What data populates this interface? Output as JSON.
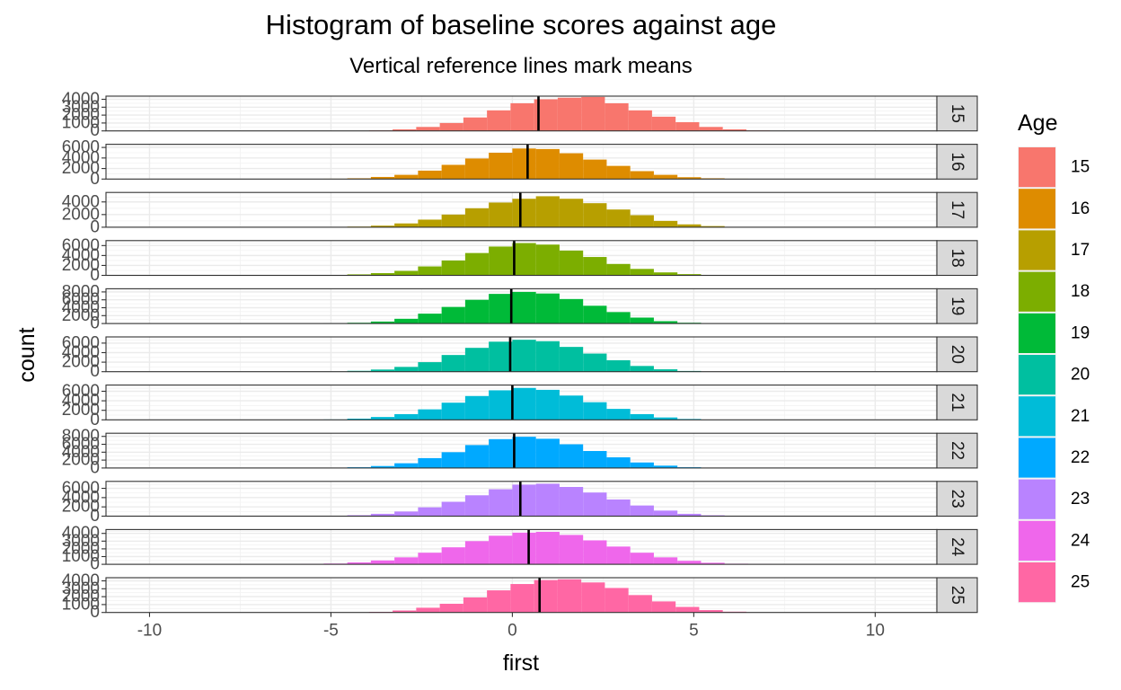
{
  "chart_data": {
    "type": "bar",
    "title": "Histogram of baseline scores against age",
    "subtitle": "Vertical reference lines mark means",
    "xlabel": "first",
    "ylabel": "count",
    "xlim": [
      -11.2,
      11.7
    ],
    "x_ticks": [
      -10,
      -5,
      0,
      5,
      10
    ],
    "x_tick_labels": [
      "-10",
      "-5",
      "0",
      "5",
      "10"
    ],
    "bin_width": 0.65,
    "grid": true,
    "legend": {
      "title": "Age",
      "position": "right"
    },
    "facets": [
      {
        "label": "15",
        "color": "#F8766D",
        "mean": 0.72,
        "y_ticks": [
          0,
          1000,
          2000,
          3000,
          4000
        ],
        "y_tick_labels": [
          "0",
          "1000",
          "2000",
          "3000",
          "4000"
        ],
        "ylim": [
          0,
          4400
        ],
        "bins_start": -4.6,
        "values": [
          20,
          60,
          200,
          500,
          1000,
          1700,
          2600,
          3500,
          4000,
          4200,
          4300,
          3500,
          2600,
          1800,
          1100,
          500,
          200,
          60,
          15
        ]
      },
      {
        "label": "16",
        "color": "#DE8C00",
        "mean": 0.42,
        "y_ticks": [
          0,
          2000,
          4000,
          6000
        ],
        "y_tick_labels": [
          "0",
          "2000",
          "4000",
          "6000"
        ],
        "ylim": [
          0,
          6600
        ],
        "bins_start": -5.85,
        "values": [
          20,
          60,
          150,
          400,
          800,
          1600,
          2700,
          3900,
          5000,
          5800,
          5700,
          4900,
          3700,
          2500,
          1500,
          800,
          350,
          150,
          60,
          20
        ]
      },
      {
        "label": "17",
        "color": "#B79F00",
        "mean": 0.22,
        "y_ticks": [
          0,
          2000,
          4000
        ],
        "y_tick_labels": [
          "0",
          "2000",
          "4000"
        ],
        "ylim": [
          0,
          5500
        ],
        "bins_start": -5.2,
        "values": [
          30,
          100,
          250,
          600,
          1200,
          2000,
          3000,
          3900,
          4500,
          4900,
          4500,
          3800,
          2800,
          1900,
          1000,
          450,
          180,
          50
        ]
      },
      {
        "label": "18",
        "color": "#7CAE00",
        "mean": 0.05,
        "y_ticks": [
          0,
          2000,
          4000,
          6000
        ],
        "y_tick_labels": [
          "0",
          "2000",
          "4000",
          "6000"
        ],
        "ylim": [
          0,
          7000
        ],
        "bins_start": -5.85,
        "values": [
          20,
          80,
          200,
          450,
          900,
          1800,
          3000,
          4500,
          5800,
          6500,
          6200,
          5000,
          3700,
          2300,
          1300,
          600,
          250,
          80,
          20
        ]
      },
      {
        "label": "19",
        "color": "#00BA38",
        "mean": -0.03,
        "y_ticks": [
          0,
          2000,
          4000,
          6000,
          8000
        ],
        "y_tick_labels": [
          "0",
          "2000",
          "4000",
          "6000",
          "8000"
        ],
        "ylim": [
          0,
          8800
        ],
        "bins_start": -5.2,
        "values": [
          50,
          200,
          500,
          1200,
          2500,
          4200,
          6000,
          7500,
          8000,
          7600,
          6200,
          4500,
          2900,
          1500,
          600,
          200
        ]
      },
      {
        "label": "20",
        "color": "#00BFA0",
        "mean": -0.06,
        "y_ticks": [
          0,
          2000,
          4000,
          6000
        ],
        "y_tick_labels": [
          "0",
          "2000",
          "4000",
          "6000"
        ],
        "ylim": [
          0,
          7300
        ],
        "bins_start": -5.2,
        "values": [
          40,
          180,
          450,
          1000,
          2000,
          3500,
          5000,
          6300,
          6700,
          6400,
          5200,
          3800,
          2400,
          1200,
          500,
          150
        ]
      },
      {
        "label": "21",
        "color": "#00BCD8",
        "mean": 0.0,
        "y_ticks": [
          0,
          2000,
          4000,
          6000
        ],
        "y_tick_labels": [
          "0",
          "2000",
          "4000",
          "6000"
        ],
        "ylim": [
          0,
          7300
        ],
        "bins_start": -5.85,
        "values": [
          20,
          80,
          250,
          600,
          1200,
          2200,
          3600,
          5000,
          6200,
          6700,
          6300,
          5100,
          3700,
          2300,
          1200,
          500,
          180,
          50,
          15
        ]
      },
      {
        "label": "22",
        "color": "#00A9FF",
        "mean": 0.05,
        "y_ticks": [
          0,
          2000,
          4000,
          6000,
          8000
        ],
        "y_tick_labels": [
          "0",
          "2000",
          "4000",
          "6000",
          "8000"
        ],
        "ylim": [
          0,
          8800
        ],
        "bins_start": -5.2,
        "values": [
          50,
          200,
          500,
          1200,
          2500,
          4000,
          5800,
          7300,
          7900,
          7400,
          6000,
          4300,
          2700,
          1400,
          600,
          200
        ]
      },
      {
        "label": "23",
        "color": "#B983FF",
        "mean": 0.22,
        "y_ticks": [
          0,
          2000,
          4000,
          6000
        ],
        "y_tick_labels": [
          "0",
          "2000",
          "4000",
          "6000"
        ],
        "ylim": [
          0,
          7500
        ],
        "bins_start": -5.2,
        "values": [
          60,
          200,
          500,
          1000,
          1900,
          3100,
          4500,
          5800,
          6800,
          7000,
          6300,
          5100,
          3600,
          2300,
          1200,
          500,
          180,
          50
        ]
      },
      {
        "label": "24",
        "color": "#EF67EB",
        "mean": 0.45,
        "y_ticks": [
          0,
          1000,
          2000,
          3000,
          4000
        ],
        "y_tick_labels": [
          "0",
          "1000",
          "2000",
          "3000",
          "4000"
        ],
        "ylim": [
          0,
          4500
        ],
        "bins_start": -6.5,
        "values": [
          15,
          40,
          100,
          250,
          500,
          900,
          1500,
          2200,
          3000,
          3700,
          4100,
          4200,
          3800,
          3100,
          2300,
          1500,
          900,
          450,
          200,
          80,
          30,
          10
        ]
      },
      {
        "label": "25",
        "color": "#FF67A4",
        "mean": 0.75,
        "y_ticks": [
          0,
          1000,
          2000,
          3000,
          4000
        ],
        "y_tick_labels": [
          "0",
          "1000",
          "2000",
          "3000",
          "4000"
        ],
        "ylim": [
          0,
          4400
        ],
        "bins_start": -4.6,
        "values": [
          20,
          80,
          250,
          600,
          1100,
          1900,
          2800,
          3600,
          4100,
          4200,
          3800,
          3100,
          2200,
          1400,
          700,
          300,
          100,
          20
        ]
      }
    ]
  }
}
